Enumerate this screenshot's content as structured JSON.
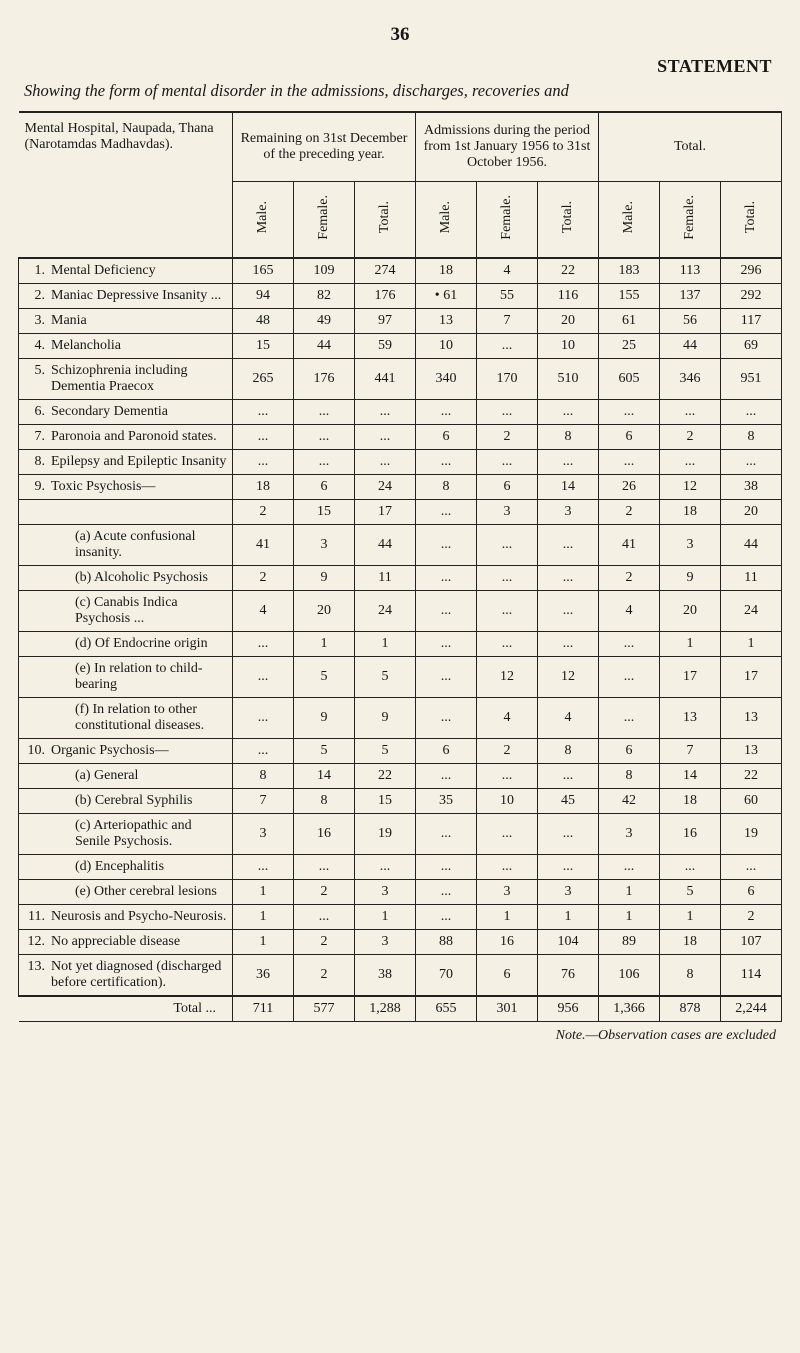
{
  "page_number": "36",
  "heading_right": "STATEMENT",
  "subtitle": "Showing the form of mental disorder in the admissions, discharges, recoveries and",
  "corner_label": "Mental Hospital, Naupada, Thana (Narotamdas Madhavdas).",
  "groups": [
    "Remaining on 31st December of the preceding year.",
    "Admissions during the period from 1st January 1956 to 31st October 1956.",
    "Total."
  ],
  "leafs": [
    "Male.",
    "Female.",
    "Total.",
    "Male.",
    "Female.",
    "Total.",
    "Male.",
    "Female.",
    "Total."
  ],
  "rows": [
    {
      "n": "1.",
      "d": "Mental Deficiency",
      "i": 0,
      "c": [
        "165",
        "109",
        "274",
        "18",
        "4",
        "22",
        "183",
        "113",
        "296"
      ]
    },
    {
      "n": "2.",
      "d": "Maniac Depressive Insanity ...",
      "i": 0,
      "c": [
        "94",
        "82",
        "176",
        "• 61",
        "55",
        "116",
        "155",
        "137",
        "292"
      ]
    },
    {
      "n": "3.",
      "d": "Mania",
      "i": 0,
      "c": [
        "48",
        "49",
        "97",
        "13",
        "7",
        "20",
        "61",
        "56",
        "117"
      ]
    },
    {
      "n": "4.",
      "d": "Melancholia",
      "i": 0,
      "c": [
        "15",
        "44",
        "59",
        "10",
        "...",
        "10",
        "25",
        "44",
        "69"
      ]
    },
    {
      "n": "5.",
      "d": "Schizophrenia including Dementia Praecox",
      "i": 0,
      "c": [
        "265",
        "176",
        "441",
        "340",
        "170",
        "510",
        "605",
        "346",
        "951"
      ]
    },
    {
      "n": "6.",
      "d": "Secondary Dementia",
      "i": 0,
      "c": [
        "...",
        "...",
        "...",
        "...",
        "...",
        "...",
        "...",
        "...",
        "..."
      ]
    },
    {
      "n": "7.",
      "d": "Paronoia and Paronoid states.",
      "i": 0,
      "c": [
        "...",
        "...",
        "...",
        "6",
        "2",
        "8",
        "6",
        "2",
        "8"
      ]
    },
    {
      "n": "8.",
      "d": "Epilepsy and Epileptic Insanity",
      "i": 0,
      "c": [
        "...",
        "...",
        "...",
        "...",
        "...",
        "...",
        "...",
        "...",
        "..."
      ]
    },
    {
      "n": "9.",
      "d": "Toxic Psychosis—",
      "i": 0,
      "c": [
        "18",
        "6",
        "24",
        "8",
        "6",
        "14",
        "26",
        "12",
        "38"
      ]
    },
    {
      "n": "",
      "d": "",
      "i": 0,
      "c": [
        "2",
        "15",
        "17",
        "...",
        "3",
        "3",
        "2",
        "18",
        "20"
      ]
    },
    {
      "n": "",
      "d": "(a) Acute confusional insanity.",
      "i": 1,
      "c": [
        "41",
        "3",
        "44",
        "...",
        "...",
        "...",
        "41",
        "3",
        "44"
      ]
    },
    {
      "n": "",
      "d": "(b) Alcoholic Psychosis",
      "i": 1,
      "c": [
        "2",
        "9",
        "11",
        "...",
        "...",
        "...",
        "2",
        "9",
        "11"
      ]
    },
    {
      "n": "",
      "d": "(c) Canabis Indica Psychosis ...",
      "i": 1,
      "c": [
        "4",
        "20",
        "24",
        "...",
        "...",
        "...",
        "4",
        "20",
        "24"
      ]
    },
    {
      "n": "",
      "d": "(d) Of Endocrine origin",
      "i": 1,
      "c": [
        "...",
        "1",
        "1",
        "...",
        "...",
        "...",
        "...",
        "1",
        "1"
      ]
    },
    {
      "n": "",
      "d": "(e) In relation to child-bearing",
      "i": 1,
      "c": [
        "...",
        "5",
        "5",
        "...",
        "12",
        "12",
        "...",
        "17",
        "17"
      ]
    },
    {
      "n": "",
      "d": "(f) In relation to other consti­tutional diseases.",
      "i": 1,
      "c": [
        "...",
        "9",
        "9",
        "...",
        "4",
        "4",
        "...",
        "13",
        "13"
      ]
    },
    {
      "n": "10.",
      "d": "Organic Psychosis—",
      "i": 0,
      "c": [
        "...",
        "5",
        "5",
        "6",
        "2",
        "8",
        "6",
        "7",
        "13"
      ]
    },
    {
      "n": "",
      "d": "(a) General",
      "i": 1,
      "c": [
        "8",
        "14",
        "22",
        "...",
        "...",
        "...",
        "8",
        "14",
        "22"
      ]
    },
    {
      "n": "",
      "d": "(b) Cerebral Syphilis",
      "i": 1,
      "c": [
        "7",
        "8",
        "15",
        "35",
        "10",
        "45",
        "42",
        "18",
        "60"
      ]
    },
    {
      "n": "",
      "d": "(c) Arteriopathic and Senile Psychosis.",
      "i": 1,
      "c": [
        "3",
        "16",
        "19",
        "...",
        "...",
        "...",
        "3",
        "16",
        "19"
      ]
    },
    {
      "n": "",
      "d": "(d) Encephalitis",
      "i": 1,
      "c": [
        "...",
        "...",
        "...",
        "...",
        "...",
        "...",
        "...",
        "...",
        "..."
      ]
    },
    {
      "n": "",
      "d": "(e) Other cerebral lesions",
      "i": 1,
      "c": [
        "1",
        "2",
        "3",
        "...",
        "3",
        "3",
        "1",
        "5",
        "6"
      ]
    },
    {
      "n": "11.",
      "d": "Neurosis and Psycho-Neurosis.",
      "i": 0,
      "c": [
        "1",
        "...",
        "1",
        "...",
        "1",
        "1",
        "1",
        "1",
        "2"
      ]
    },
    {
      "n": "12.",
      "d": "No appreciable disease",
      "i": 0,
      "c": [
        "1",
        "2",
        "3",
        "88",
        "16",
        "104",
        "89",
        "18",
        "107"
      ]
    },
    {
      "n": "13.",
      "d": "Not yet diagnosed (discharged before certification).",
      "i": 0,
      "c": [
        "36",
        "2",
        "38",
        "70",
        "6",
        "76",
        "106",
        "8",
        "114"
      ]
    }
  ],
  "total": {
    "label": "Total ...",
    "c": [
      "711",
      "577",
      "1,288",
      "655",
      "301",
      "956",
      "1,366",
      "878",
      "2,244"
    ]
  },
  "footnote": "Note.—Observation cases are excluded"
}
